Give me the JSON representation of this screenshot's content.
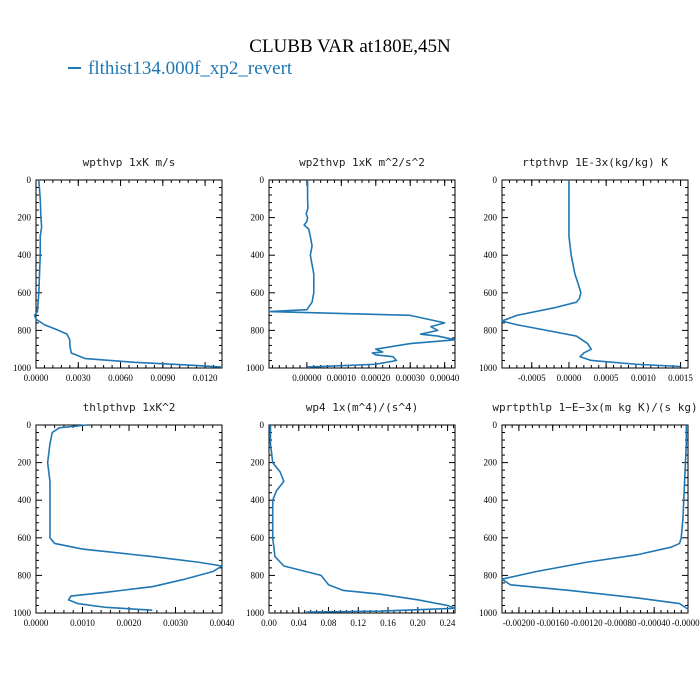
{
  "figure": {
    "title": "CLUBB VAR at180E,45N",
    "legend_label": "flthist134.000f_xp2_revert",
    "series_color": "#1f77b4"
  },
  "chart_data": [
    {
      "type": "line",
      "title": "wpthvp   1xK m/s",
      "xlim": [
        0,
        0.0132
      ],
      "ylim": [
        1000,
        0
      ],
      "xticks": [
        0,
        0.003,
        0.006,
        0.009,
        0.012
      ],
      "xtick_labels": [
        "0.0000",
        "0.0030",
        "0.0060",
        "0.0090",
        "0.0120"
      ],
      "yticks": [
        0,
        200,
        400,
        600,
        800,
        1000
      ],
      "ytick_labels": [
        "0",
        "200",
        "400",
        "600",
        "800",
        "1000"
      ],
      "series": [
        {
          "values": [
            [
              0.0002,
              0
            ],
            [
              0.0003,
              100
            ],
            [
              0.00035,
              200
            ],
            [
              0.0004,
              250
            ],
            [
              0.0003,
              300
            ],
            [
              0.0003,
              400
            ],
            [
              0.00025,
              500
            ],
            [
              0.0002,
              600
            ],
            [
              0.0001,
              700
            ],
            [
              -0.0001,
              720
            ],
            [
              0,
              740
            ],
            [
              0.0006,
              770
            ],
            [
              0.0016,
              800
            ],
            [
              0.0022,
              820
            ],
            [
              0.0024,
              850
            ],
            [
              0.0024,
              880
            ],
            [
              0.0025,
              920
            ],
            [
              0.0035,
              950
            ],
            [
              0.007,
              970
            ],
            [
              0.011,
              985
            ],
            [
              0.0132,
              995
            ]
          ]
        }
      ]
    },
    {
      "type": "line",
      "title": "wp2thvp   1xK m^2/s^2",
      "xlim": [
        -0.00011,
        0.00043
      ],
      "ylim": [
        1000,
        0
      ],
      "xticks": [
        0,
        0.0001,
        0.0002,
        0.0003,
        0.0004
      ],
      "xtick_labels": [
        "0.00000",
        "0.00010",
        "0.00020",
        "0.00030",
        "0.00040"
      ],
      "yticks": [
        0,
        200,
        400,
        600,
        800,
        1000
      ],
      "ytick_labels": [
        "0",
        "200",
        "400",
        "600",
        "800",
        "1000"
      ],
      "series": [
        {
          "values": [
            [
              2e-06,
              0
            ],
            [
              2e-06,
              100
            ],
            [
              3e-06,
              150
            ],
            [
              -2e-06,
              180
            ],
            [
              2e-06,
              200
            ],
            [
              0,
              220
            ],
            [
              -8e-06,
              240
            ],
            [
              5e-06,
              260
            ],
            [
              1e-05,
              300
            ],
            [
              1.5e-05,
              350
            ],
            [
              1e-05,
              400
            ],
            [
              1.5e-05,
              450
            ],
            [
              2e-05,
              500
            ],
            [
              2e-05,
              600
            ],
            [
              1.5e-05,
              650
            ],
            [
              0,
              690
            ],
            [
              -0.00011,
              700
            ],
            [
              0.0003,
              720
            ],
            [
              0.0004,
              760
            ],
            [
              0.00036,
              780
            ],
            [
              0.00038,
              800
            ],
            [
              0.00033,
              820
            ],
            [
              0.00038,
              830
            ],
            [
              0.00043,
              850
            ],
            [
              0.0003,
              870
            ],
            [
              0.0002,
              900
            ],
            [
              0.00022,
              915
            ],
            [
              0.00019,
              920
            ],
            [
              0.0002,
              930
            ],
            [
              0.00025,
              940
            ],
            [
              0.00026,
              960
            ],
            [
              0.0002,
              980
            ],
            [
              0,
              995
            ]
          ]
        }
      ]
    },
    {
      "type": "line",
      "title": "rtpthvp   1E-3x(kg/kg) K",
      "xlim": [
        -0.0009,
        0.0016
      ],
      "ylim": [
        1000,
        0
      ],
      "xticks": [
        -0.0005,
        0,
        0.0005,
        0.001,
        0.0015
      ],
      "xtick_labels": [
        "-0.0005",
        "0.0000",
        "0.0005",
        "0.0010",
        "0.0015"
      ],
      "yticks": [
        0,
        200,
        400,
        600,
        800,
        1000
      ],
      "ytick_labels": [
        "0",
        "200",
        "400",
        "600",
        "800",
        "1000"
      ],
      "series": [
        {
          "values": [
            [
              0,
              0
            ],
            [
              0,
              100
            ],
            [
              0,
              200
            ],
            [
              0,
              300
            ],
            [
              3e-05,
              400
            ],
            [
              8e-05,
              500
            ],
            [
              0.00013,
              560
            ],
            [
              0.00016,
              600
            ],
            [
              0.00014,
              630
            ],
            [
              0.0001,
              650
            ],
            [
              -0.0002,
              680
            ],
            [
              -0.0007,
              720
            ],
            [
              -0.0009,
              750
            ],
            [
              -0.0007,
              770
            ],
            [
              -0.0003,
              800
            ],
            [
              0.0001,
              830
            ],
            [
              0.00025,
              870
            ],
            [
              0.0003,
              900
            ],
            [
              0.0002,
              920
            ],
            [
              0.00015,
              940
            ],
            [
              0.0003,
              960
            ],
            [
              0.0009,
              980
            ],
            [
              0.0015,
              992
            ]
          ]
        }
      ]
    },
    {
      "type": "line",
      "title": "thlpthvp   1xK^2",
      "xlim": [
        0,
        0.004
      ],
      "ylim": [
        1000,
        0
      ],
      "xticks": [
        0,
        0.001,
        0.002,
        0.003,
        0.004
      ],
      "xtick_labels": [
        "0.0000",
        "0.0010",
        "0.0020",
        "0.0030",
        "0.0040"
      ],
      "yticks": [
        0,
        200,
        400,
        600,
        800,
        1000
      ],
      "ytick_labels": [
        "0",
        "200",
        "400",
        "600",
        "800",
        "1000"
      ],
      "series": [
        {
          "values": [
            [
              0.0011,
              0
            ],
            [
              0.0005,
              15
            ],
            [
              0.00035,
              40
            ],
            [
              0.0003,
              100
            ],
            [
              0.00025,
              200
            ],
            [
              0.0003,
              300
            ],
            [
              0.0003,
              400
            ],
            [
              0.0003,
              500
            ],
            [
              0.0003,
              600
            ],
            [
              0.0004,
              630
            ],
            [
              0.001,
              660
            ],
            [
              0.0025,
              700
            ],
            [
              0.0035,
              730
            ],
            [
              0.004,
              750
            ],
            [
              0.0038,
              780
            ],
            [
              0.0032,
              820
            ],
            [
              0.0025,
              860
            ],
            [
              0.0015,
              890
            ],
            [
              0.00075,
              910
            ],
            [
              0.0007,
              930
            ],
            [
              0.0009,
              950
            ],
            [
              0.0015,
              970
            ],
            [
              0.0025,
              985
            ]
          ]
        }
      ]
    },
    {
      "type": "line",
      "title": "wp4   1x(m^4)/(s^4)",
      "xlim": [
        0,
        0.25
      ],
      "ylim": [
        1000,
        0
      ],
      "xticks": [
        0,
        0.04,
        0.08,
        0.12,
        0.16,
        0.2,
        0.24
      ],
      "xtick_labels": [
        "0.00",
        "0.04",
        "0.08",
        "0.12",
        "0.16",
        "0.20",
        "0.24"
      ],
      "yticks": [
        0,
        200,
        400,
        600,
        800,
        1000
      ],
      "ytick_labels": [
        "0",
        "200",
        "400",
        "600",
        "800",
        "1000"
      ],
      "series": [
        {
          "values": [
            [
              0.002,
              0
            ],
            [
              0.002,
              100
            ],
            [
              0.005,
              200
            ],
            [
              0.015,
              250
            ],
            [
              0.02,
              300
            ],
            [
              0.01,
              350
            ],
            [
              0.005,
              400
            ],
            [
              0.005,
              500
            ],
            [
              0.005,
              600
            ],
            [
              0.008,
              700
            ],
            [
              0.02,
              750
            ],
            [
              0.05,
              780
            ],
            [
              0.07,
              800
            ],
            [
              0.08,
              850
            ],
            [
              0.1,
              880
            ],
            [
              0.15,
              900
            ],
            [
              0.2,
              930
            ],
            [
              0.24,
              960
            ],
            [
              0.25,
              975
            ],
            [
              0.15,
              990
            ],
            [
              0.05,
              995
            ]
          ]
        }
      ]
    },
    {
      "type": "line",
      "title": "wprtpthlp   1−E−3x(m kg K)/(s kg)",
      "xlim": [
        -0.0022,
        0
      ],
      "ylim": [
        1000,
        0
      ],
      "xticks": [
        -0.002,
        -0.0016,
        -0.0012,
        -0.0008,
        -0.0004,
        0
      ],
      "xtick_labels": [
        "-0.00200",
        "-0.00160",
        "-0.00120",
        "-0.00080",
        "-0.00040",
        "-0.00000"
      ],
      "yticks": [
        0,
        200,
        400,
        600,
        800,
        1000
      ],
      "ytick_labels": [
        "0",
        "200",
        "400",
        "600",
        "800",
        "1000"
      ],
      "series": [
        {
          "values": [
            [
              -2e-05,
              0
            ],
            [
              -2e-05,
              100
            ],
            [
              -3e-05,
              200
            ],
            [
              -4e-05,
              300
            ],
            [
              -5e-05,
              400
            ],
            [
              -6e-05,
              500
            ],
            [
              -8e-05,
              600
            ],
            [
              -0.0001,
              630
            ],
            [
              -0.0002,
              650
            ],
            [
              -0.0006,
              690
            ],
            [
              -0.0012,
              730
            ],
            [
              -0.0018,
              780
            ],
            [
              -0.0022,
              820
            ],
            [
              -0.0021,
              850
            ],
            [
              -0.0014,
              880
            ],
            [
              -0.0006,
              920
            ],
            [
              -0.0001,
              950
            ],
            [
              0,
              980
            ]
          ]
        }
      ]
    }
  ]
}
